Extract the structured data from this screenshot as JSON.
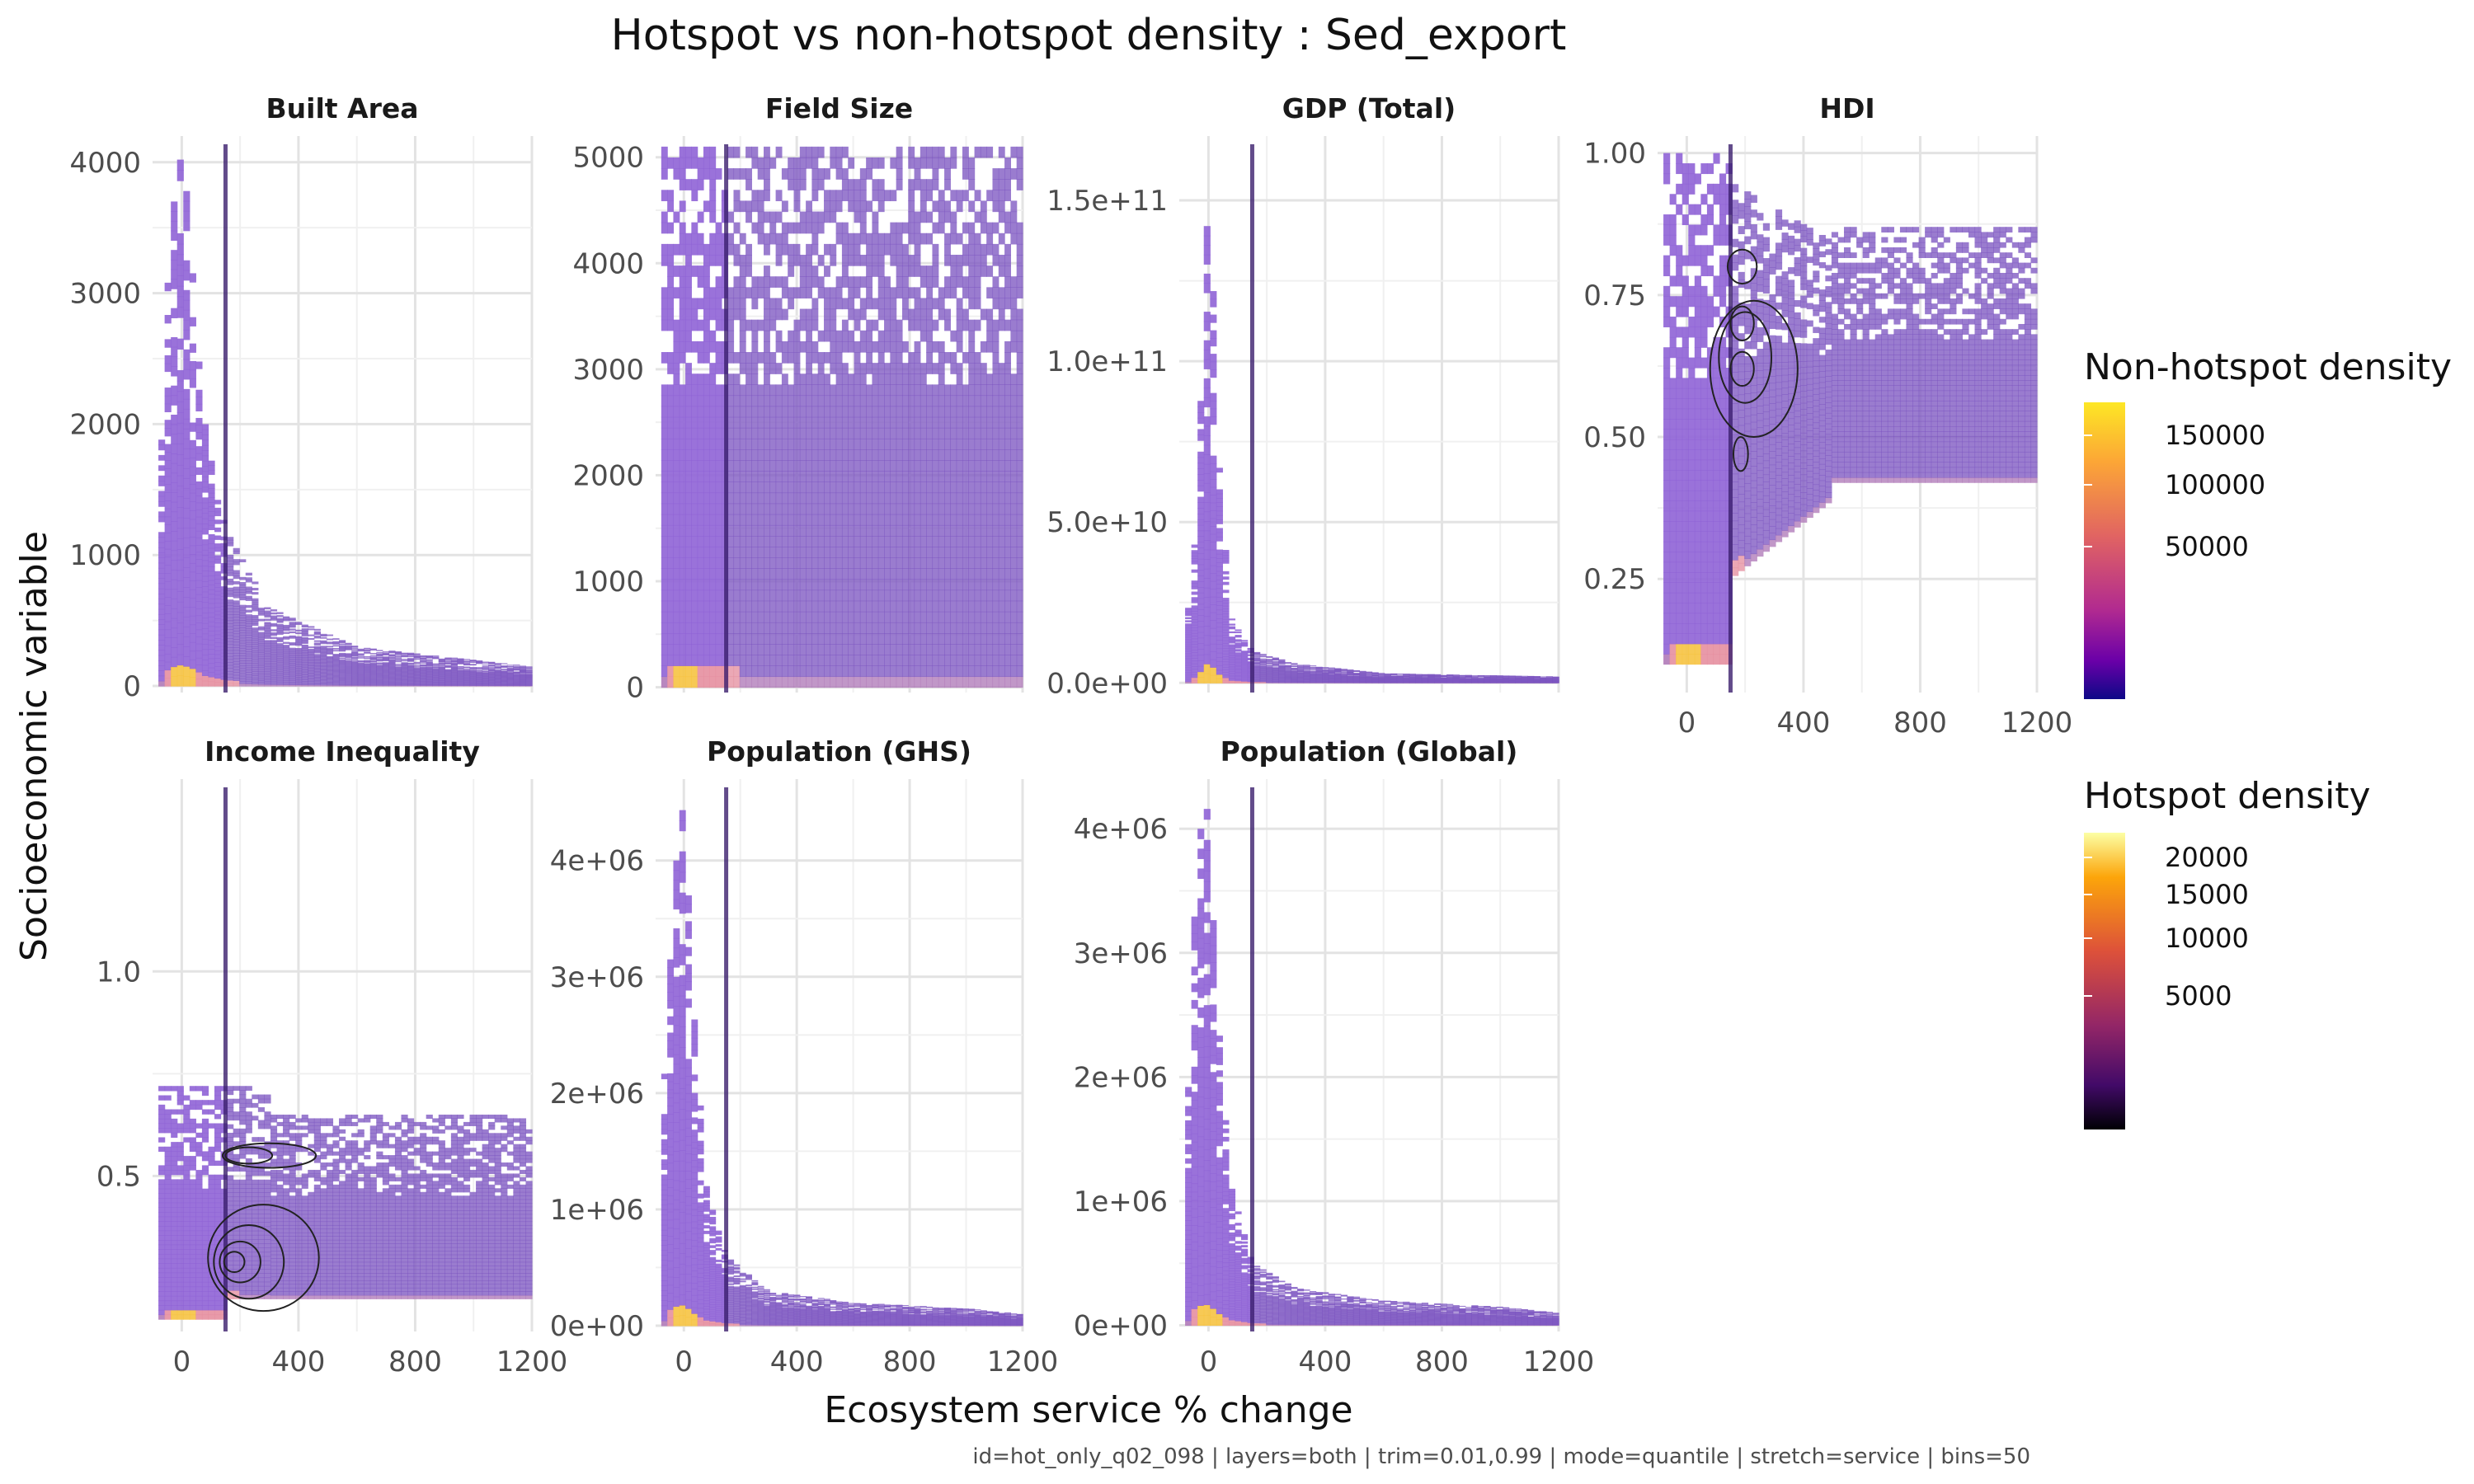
{
  "chart_data": {
    "type": "heatmap",
    "title": "Hotspot vs non-hotspot density : Sed_export",
    "xlabel": "Ecosystem service % change",
    "ylabel": "Socioeconomic variable",
    "caption": "id=hot_only_q02_098 | layers=both | trim=0.01,0.99 | mode=quantile | stretch=service | bins=50",
    "grid": true,
    "legends": [
      {
        "name": "Non-hotspot density",
        "palette": [
          "#fde725",
          "#fca636",
          "#e16462",
          "#b12a90",
          "#6a00a8",
          "#0d0887"
        ],
        "labels": [
          "150000",
          "100000",
          "50000"
        ]
      },
      {
        "name": "Hotspot density",
        "palette": [
          "#fcffa4",
          "#fca50a",
          "#dd513a",
          "#932667",
          "#420a68",
          "#000004"
        ],
        "labels": [
          "20000",
          "15000",
          "10000",
          "5000"
        ]
      }
    ],
    "panels": [
      {
        "name": "Built Area",
        "xlim": [
          -100,
          1200
        ],
        "ylim": [
          -50,
          4200
        ],
        "xticks": [
          0,
          400,
          800,
          1200
        ],
        "yticks": [
          0,
          1000,
          2000,
          3000,
          4000
        ],
        "ytick_labels": [
          "0",
          "1000",
          "2000",
          "3000",
          "4000"
        ],
        "show_x_labels": false,
        "hotspot_line": 150,
        "profile": {
          "base": 0,
          "top": 4100,
          "peak": 3500,
          "decay": 120,
          "cols_y": [
            [
              -80,
              1400
            ],
            [
              -40,
              3500
            ],
            [
              0,
              4100
            ],
            [
              40,
              3300
            ],
            [
              80,
              2000
            ],
            [
              150,
              1200
            ],
            [
              300,
              600
            ],
            [
              600,
              300
            ],
            [
              1000,
              200
            ],
            [
              1200,
              150
            ]
          ]
        },
        "contours": []
      },
      {
        "name": "Field Size",
        "xlim": [
          -100,
          1200
        ],
        "ylim": [
          -50,
          5200
        ],
        "xticks": [
          0,
          400,
          800,
          1200
        ],
        "yticks": [
          0,
          1000,
          2000,
          3000,
          4000,
          5000
        ],
        "ytick_labels": [
          "0",
          "1000",
          "2000",
          "3000",
          "4000",
          "5000"
        ],
        "show_x_labels": false,
        "hotspot_line": 150,
        "profile": {
          "base": 0,
          "top": 5100,
          "full": true
        },
        "contours": []
      },
      {
        "name": "GDP (Total)",
        "xlim": [
          -100,
          1200
        ],
        "ylim": [
          -3000000000.0,
          170000000000.0
        ],
        "xticks": [
          0,
          400,
          800,
          1200
        ],
        "yticks": [
          0,
          50000000000.0,
          100000000000.0,
          150000000000.0
        ],
        "ytick_labels": [
          "0.0e+00",
          "5.0e+10",
          "1.0e+11",
          "1.5e+11"
        ],
        "show_x_labels": false,
        "hotspot_line": 150,
        "profile": {
          "base": 0,
          "top": 163000000000.0,
          "cols_y": [
            [
              -80,
              15000000000.0
            ],
            [
              -40,
              50000000000.0
            ],
            [
              0,
              163000000000.0
            ],
            [
              40,
              60000000000.0
            ],
            [
              80,
              20000000000.0
            ],
            [
              150,
              10000000000.0
            ],
            [
              300,
              6000000000.0
            ],
            [
              600,
              3000000000.0
            ],
            [
              1200,
              2000000000.0
            ]
          ]
        },
        "contours": []
      },
      {
        "name": "HDI",
        "xlim": [
          -100,
          1200
        ],
        "ylim": [
          0.05,
          1.03
        ],
        "xticks": [
          0,
          400,
          800,
          1200
        ],
        "yticks": [
          0.25,
          0.5,
          0.75,
          1.0
        ],
        "ytick_labels": [
          "0.25",
          "0.50",
          "0.75",
          "1.00"
        ],
        "show_x_labels": true,
        "hotspot_line": 150,
        "profile": {
          "base": 0.25,
          "top": 1.0,
          "hdi": true
        },
        "contours": [
          {
            "cx": 230,
            "cy": 0.62,
            "rx": 150,
            "ry": 0.12
          },
          {
            "cx": 200,
            "cy": 0.64,
            "rx": 90,
            "ry": 0.08
          },
          {
            "cx": 190,
            "cy": 0.8,
            "rx": 50,
            "ry": 0.03
          },
          {
            "cx": 190,
            "cy": 0.7,
            "rx": 40,
            "ry": 0.03
          },
          {
            "cx": 190,
            "cy": 0.62,
            "rx": 40,
            "ry": 0.03
          },
          {
            "cx": 185,
            "cy": 0.47,
            "rx": 25,
            "ry": 0.03
          }
        ]
      },
      {
        "name": "Income Inequality",
        "xlim": [
          -100,
          1200
        ],
        "ylim": [
          0.12,
          1.47
        ],
        "xticks": [
          0,
          400,
          800,
          1200
        ],
        "yticks": [
          0.5,
          1.0
        ],
        "ytick_labels": [
          "0.5",
          "1.0"
        ],
        "show_x_labels": true,
        "hotspot_line": 150,
        "profile": {
          "base": 0.15,
          "top": 0.72,
          "ineq": true
        },
        "contours": [
          {
            "cx": 300,
            "cy": 0.55,
            "rx": 160,
            "ry": 0.03
          },
          {
            "cx": 230,
            "cy": 0.55,
            "rx": 80,
            "ry": 0.02
          },
          {
            "cx": 280,
            "cy": 0.3,
            "rx": 190,
            "ry": 0.13
          },
          {
            "cx": 230,
            "cy": 0.29,
            "rx": 120,
            "ry": 0.09
          },
          {
            "cx": 200,
            "cy": 0.29,
            "rx": 70,
            "ry": 0.05
          },
          {
            "cx": 180,
            "cy": 0.29,
            "rx": 35,
            "ry": 0.025
          }
        ]
      },
      {
        "name": "Population (GHS)",
        "xlim": [
          -100,
          1200
        ],
        "ylim": [
          -50000.0,
          4700000.0
        ],
        "xticks": [
          0,
          400,
          800,
          1200
        ],
        "yticks": [
          0,
          1000000.0,
          2000000.0,
          3000000.0,
          4000000.0
        ],
        "ytick_labels": [
          "0e+00",
          "1e+06",
          "2e+06",
          "3e+06",
          "4e+06"
        ],
        "show_x_labels": true,
        "hotspot_line": 150,
        "profile": {
          "base": 0,
          "top": 4600000.0,
          "cols_y": [
            [
              -80,
              1500000.0
            ],
            [
              -40,
              4000000.0
            ],
            [
              0,
              4500000.0
            ],
            [
              40,
              2500000.0
            ],
            [
              80,
              1200000.0
            ],
            [
              150,
              600000.0
            ],
            [
              300,
              300000.0
            ],
            [
              600,
              200000.0
            ],
            [
              1000,
              150000.0
            ],
            [
              1200,
              100000.0
            ]
          ]
        },
        "contours": []
      },
      {
        "name": "Population (Global)",
        "xlim": [
          -100,
          1200
        ],
        "ylim": [
          -50000.0,
          4400000.0
        ],
        "xticks": [
          0,
          400,
          800,
          1200
        ],
        "yticks": [
          0,
          1000000.0,
          2000000.0,
          3000000.0,
          4000000.0
        ],
        "ytick_labels": [
          "0e+00",
          "1e+06",
          "2e+06",
          "3e+06",
          "4e+06"
        ],
        "show_x_labels": true,
        "hotspot_line": 150,
        "profile": {
          "base": 0,
          "top": 4200000.0,
          "cols_y": [
            [
              -80,
              1200000.0
            ],
            [
              -40,
              3900000.0
            ],
            [
              0,
              4200000.0
            ],
            [
              40,
              2200000.0
            ],
            [
              80,
              1100000.0
            ],
            [
              150,
              500000.0
            ],
            [
              300,
              300000.0
            ],
            [
              600,
              200000.0
            ],
            [
              1000,
              150000.0
            ],
            [
              1200,
              100000.0
            ]
          ]
        },
        "contours": []
      }
    ]
  }
}
